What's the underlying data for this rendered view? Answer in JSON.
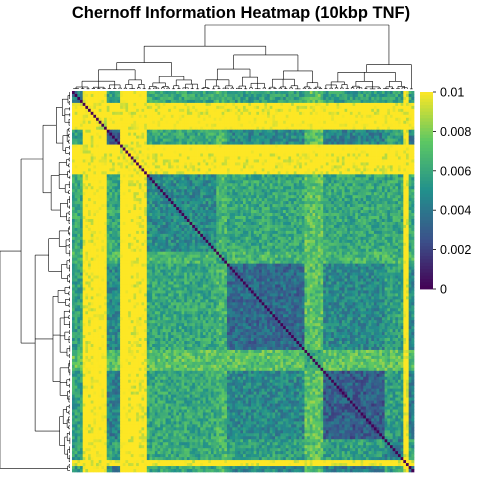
{
  "chart_data": {
    "type": "heatmap",
    "title": "Chernoff Information Heatmap (10kbp TNF)",
    "xlabel": "",
    "ylabel": "",
    "row_dendrogram": true,
    "column_dendrogram": true,
    "colorbar": {
      "min": 0,
      "max": 0.01,
      "ticks": [
        "0.01",
        "0.008",
        "0.006",
        "0.004",
        "0.002",
        "0"
      ],
      "tick_values": [
        0.01,
        0.008,
        0.006,
        0.004,
        0.002,
        0
      ],
      "colormap": "viridis",
      "colors": [
        "#440154",
        "#3b528b",
        "#21908c",
        "#5dc863",
        "#fde725"
      ],
      "placement": "right"
    },
    "matrix_summary": {
      "n_items": 128,
      "symmetric": true,
      "diagonal_value": 0,
      "blocks": [
        {
          "range": [
            0,
            5
          ],
          "level": 0.0045
        },
        {
          "range": [
            5,
            13
          ],
          "level": 0.0095
        },
        {
          "range": [
            13,
            18
          ],
          "level": 0.0032
        },
        {
          "range": [
            18,
            23
          ],
          "level": 0.0098
        },
        {
          "range": [
            23,
            54
          ],
          "level": 0.0048
        },
        {
          "range": [
            54,
            58
          ],
          "level": 0.0055
        },
        {
          "range": [
            58,
            87
          ],
          "level": 0.0035
        },
        {
          "range": [
            87,
            94
          ],
          "level": 0.006
        },
        {
          "range": [
            94,
            117
          ],
          "level": 0.003
        },
        {
          "range": [
            117,
            124
          ],
          "level": 0.0045
        },
        {
          "range": [
            124,
            128
          ],
          "level": 0.003
        }
      ],
      "bright_bands": [
        [
          4,
          8
        ],
        [
          21,
          28
        ],
        [
          124,
          126
        ]
      ]
    }
  }
}
